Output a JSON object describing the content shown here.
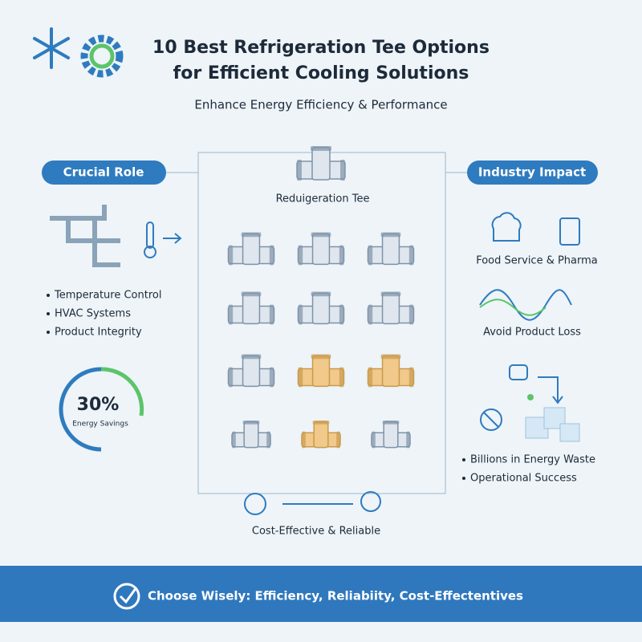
{
  "header": {
    "title_lines": [
      "10 Best Refrigeration Tee Options",
      "for Efficient Cooling Solutions"
    ],
    "subtitle": "Enhance Energy Efficiency & Performance"
  },
  "left_panel": {
    "heading": "Crucial Role",
    "items": [
      "Temperature Control",
      "HVAC Systems",
      "Product Integrity"
    ],
    "gauge_value": "30%",
    "gauge_label": "Energy Savings"
  },
  "center_panel": {
    "label": "Reduigeration Tee",
    "footer": "Cost-Effective & Reliable"
  },
  "right_panel": {
    "heading": "Industry Impact",
    "captions": [
      "Food Service & Pharma",
      "Avoid Product Loss"
    ],
    "items": [
      "Billions in Energy Waste",
      "Operational Success"
    ]
  },
  "banner": {
    "text": "Choose Wisely: Efficiency, Reliabiity, Cost-Effectentives"
  }
}
